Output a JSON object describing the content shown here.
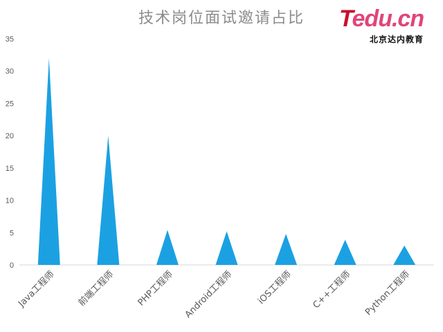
{
  "chart_data": {
    "type": "bar",
    "title": "技术岗位面试邀请占比",
    "categories": [
      "Java工程师",
      "前端工程师",
      "PHP工程师",
      "Android工程师",
      "iOS工程师",
      "C++工程师",
      "Python工程师"
    ],
    "values": [
      32,
      20,
      5.4,
      5.2,
      4.8,
      3.9,
      3.0
    ],
    "ylim": [
      0,
      35
    ],
    "yticks": [
      "0",
      "5",
      "10",
      "15",
      "20",
      "25",
      "30",
      "35"
    ],
    "bar_shape": "triangle",
    "bar_color": "#1ba1e2",
    "grid": false,
    "legend": "none"
  },
  "logo": {
    "brand_t": "T",
    "brand_rest": "edu.cn",
    "subtitle": "北京达内教育"
  }
}
